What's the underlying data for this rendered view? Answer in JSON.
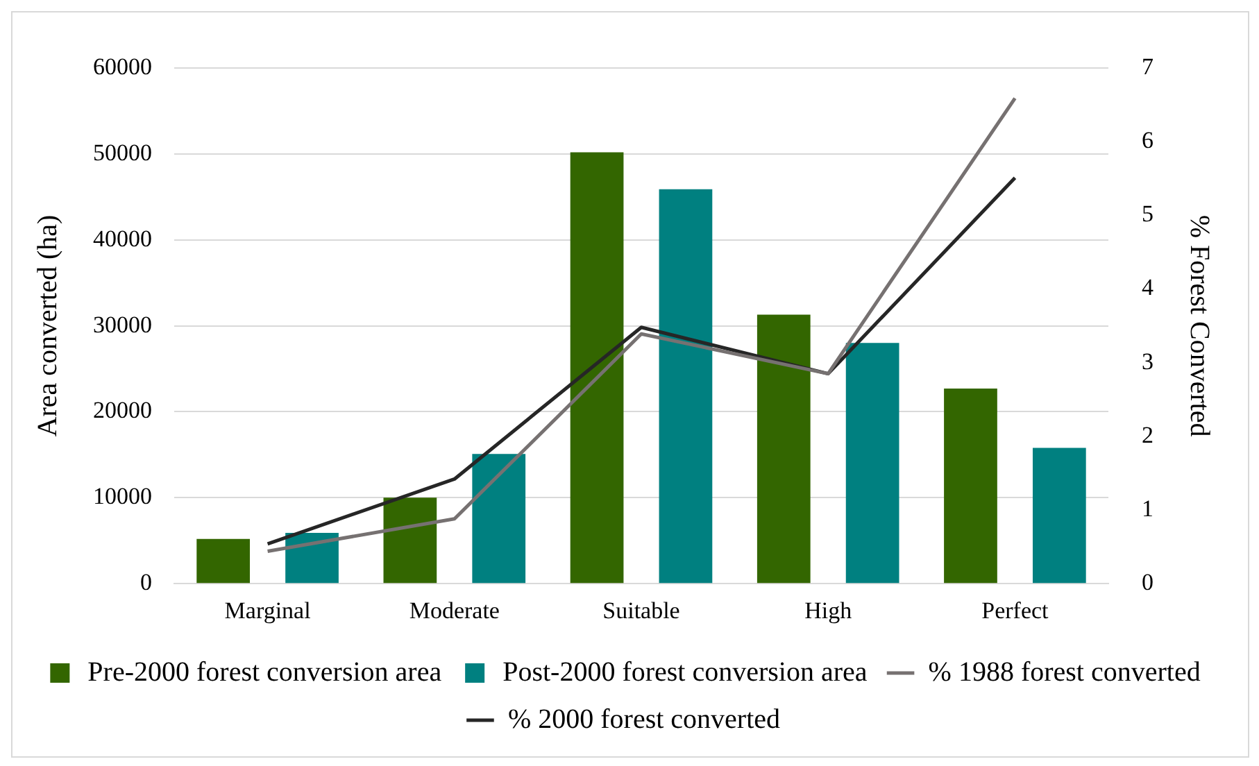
{
  "chart_data": {
    "type": "bar",
    "categories": [
      "Marginal",
      "Moderate",
      "Suitable",
      "High",
      "Perfect"
    ],
    "ylabel": "Area converted (ha)",
    "y2label": "% Forest Converted",
    "ylim": [
      0,
      60000
    ],
    "yticks": [
      0,
      10000,
      20000,
      30000,
      40000,
      50000,
      60000
    ],
    "y2lim": [
      0,
      7
    ],
    "y2ticks": [
      0,
      1,
      2,
      3,
      4,
      5,
      6,
      7
    ],
    "grid": "y",
    "legend": "bottom",
    "marker": "none",
    "series": [
      {
        "name": "Pre-2000 forest conversion area",
        "color": "#336600",
        "values": [
          5200,
          10000,
          50200,
          31300,
          22700
        ]
      },
      {
        "name": "Post-2000 forest conversion area",
        "color": "#008080",
        "values": [
          5900,
          15100,
          45900,
          28000,
          15800
        ]
      },
      {
        "name": "% 1988 forest converted",
        "type": "line",
        "axis": "y2",
        "color": "#767171",
        "line_style": "solid",
        "values": [
          0.44,
          0.88,
          3.39,
          2.85,
          6.59
        ]
      },
      {
        "name": "% 2000 forest converted",
        "type": "line",
        "axis": "y2",
        "color": "#262626",
        "line_style": "solid",
        "values": [
          0.54,
          1.42,
          3.48,
          2.85,
          5.51
        ]
      }
    ]
  }
}
